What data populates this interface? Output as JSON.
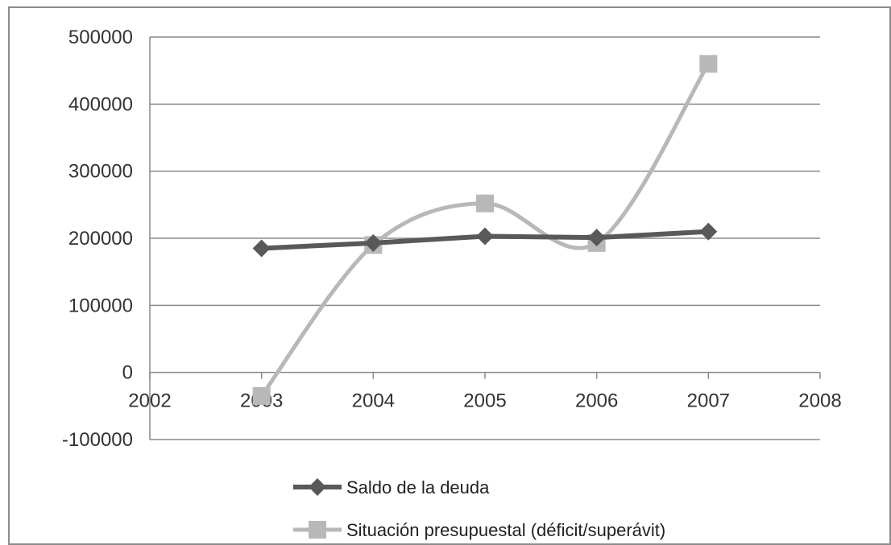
{
  "chart_data": {
    "type": "line",
    "x": [
      2003,
      2004,
      2005,
      2006,
      2007
    ],
    "xlim": [
      2002,
      2008
    ],
    "xticks": [
      "2002",
      "2003",
      "2004",
      "2005",
      "2006",
      "2007",
      "2008"
    ],
    "ylim": [
      -100000,
      500000
    ],
    "yticks": [
      "500000",
      "400000",
      "300000",
      "200000",
      "100000",
      "0",
      "-100000"
    ],
    "grid": true,
    "legend_position": "bottom",
    "series": [
      {
        "name": "Saldo de la deuda",
        "values": [
          185000,
          193000,
          203000,
          201000,
          210000
        ],
        "color": "#595959",
        "marker": "diamond",
        "smooth": false
      },
      {
        "name": "Situación presupuestal (déficit/superávit)",
        "values": [
          -35000,
          190000,
          252000,
          193000,
          460000
        ],
        "color": "#b8b8b8",
        "marker": "square",
        "smooth": true
      }
    ]
  }
}
